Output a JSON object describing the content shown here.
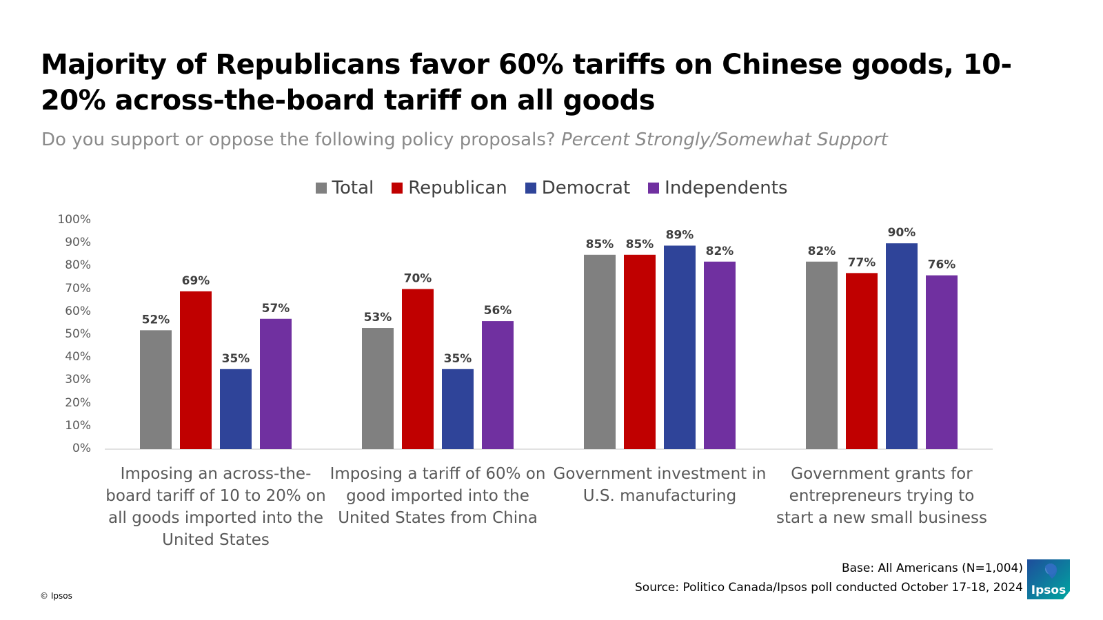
{
  "title": "Majority of Republicans favor 60% tariffs on Chinese goods, 10-20% across-the-board tariff on all goods",
  "subtitle_question": "Do you support or oppose the following policy proposals?",
  "subtitle_measure": "Percent Strongly/Somewhat Support",
  "base_note": "Base: All Americans (N=1,004)",
  "source_note": "Source: Politico Canada/Ipsos poll conducted October 17-18, 2024",
  "copyright": "© Ipsos",
  "logo_text": "Ipsos",
  "colors": {
    "Total": "#808080",
    "Republican": "#c00000",
    "Democrat": "#2f4499",
    "Independents": "#7030a0",
    "axis": "#d9d9d9",
    "logo_teal": "#00a6a0",
    "logo_blue": "#1e4d9c"
  },
  "chart_data": {
    "type": "bar",
    "title": "Majority of Republicans favor 60% tariffs on Chinese goods, 10-20% across-the-board tariff on all goods",
    "xlabel": "",
    "ylabel": "",
    "ylim": [
      0,
      100
    ],
    "yticks": [
      "0%",
      "10%",
      "20%",
      "30%",
      "40%",
      "50%",
      "60%",
      "70%",
      "80%",
      "90%",
      "100%"
    ],
    "grid": false,
    "legend_position": "top-center",
    "categories": [
      "Imposing an across-the-board tariff of 10 to 20% on all goods imported into the United States",
      "Imposing a tariff of 60% on good imported into the United States from China",
      "Government investment in U.S. manufacturing",
      "Government grants for entrepreneurs trying to start a new small business"
    ],
    "series": [
      {
        "name": "Total",
        "values": [
          52,
          53,
          85,
          82
        ]
      },
      {
        "name": "Republican",
        "values": [
          69,
          70,
          85,
          77
        ]
      },
      {
        "name": "Democrat",
        "values": [
          35,
          35,
          89,
          90
        ]
      },
      {
        "name": "Independents",
        "values": [
          57,
          56,
          82,
          76
        ]
      }
    ],
    "value_suffix": "%"
  }
}
